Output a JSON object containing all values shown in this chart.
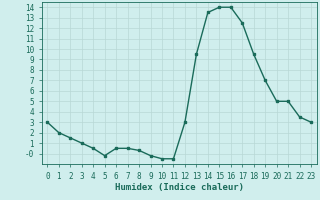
{
  "xlabel": "Humidex (Indice chaleur)",
  "x": [
    0,
    1,
    2,
    3,
    4,
    5,
    6,
    7,
    8,
    9,
    10,
    11,
    12,
    13,
    14,
    15,
    16,
    17,
    18,
    19,
    20,
    21,
    22,
    23
  ],
  "y": [
    3,
    2,
    1.5,
    1,
    0.5,
    -0.2,
    0.5,
    0.5,
    0.3,
    -0.2,
    -0.5,
    -0.5,
    3,
    9.5,
    13.5,
    14,
    14,
    12.5,
    9.5,
    7,
    5,
    5,
    3.5,
    3
  ],
  "line_color": "#1a6b5a",
  "bg_color": "#d0eeed",
  "grid_color": "#b8d8d6",
  "ylim": [
    -1,
    14.5
  ],
  "xlim": [
    -0.5,
    23.5
  ],
  "yticks": [
    0,
    1,
    2,
    3,
    4,
    5,
    6,
    7,
    8,
    9,
    10,
    11,
    12,
    13,
    14
  ],
  "xticks": [
    0,
    1,
    2,
    3,
    4,
    5,
    6,
    7,
    8,
    9,
    10,
    11,
    12,
    13,
    14,
    15,
    16,
    17,
    18,
    19,
    20,
    21,
    22,
    23
  ],
  "marker": "s",
  "marker_size": 2.0,
  "line_width": 1.0,
  "font_color": "#1a6b5a",
  "tick_fontsize": 5.5,
  "xlabel_fontsize": 6.5
}
